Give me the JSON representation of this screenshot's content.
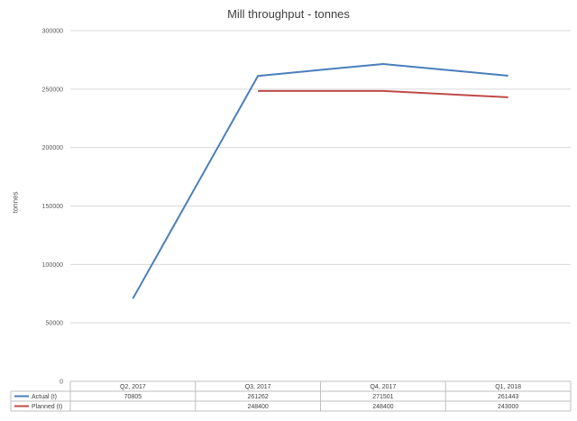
{
  "chart_data": {
    "type": "line",
    "title": "Mill throughput - tonnes",
    "ylabel": "tonnes",
    "xlabel": "",
    "categories": [
      "Q2, 2017",
      "Q3, 2017",
      "Q4, 2017",
      "Q1, 2018"
    ],
    "ylim": [
      0,
      300000
    ],
    "yticks": [
      "0",
      "50000",
      "100000",
      "150000",
      "200000",
      "250000",
      "300000"
    ],
    "grid": true,
    "legend": "data-table",
    "series": [
      {
        "name": "Actual (t)",
        "color": "#4a7ebb",
        "values": [
          70805,
          261262,
          271501,
          261443
        ],
        "labels": [
          "70805",
          "261262",
          "271501",
          "261443"
        ]
      },
      {
        "name": "Planned (t)",
        "color": "#be4b48",
        "values": [
          null,
          248400,
          248400,
          243000
        ],
        "labels": [
          "",
          "248400",
          "248400",
          "243000"
        ]
      }
    ]
  }
}
